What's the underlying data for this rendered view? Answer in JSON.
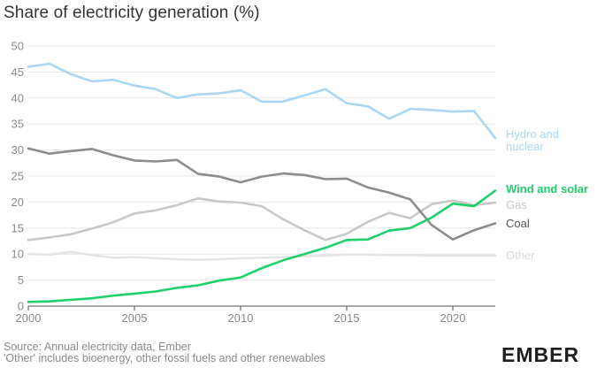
{
  "chart_data": {
    "type": "line",
    "title": "Share of electricity generation (%)",
    "xlabel": "",
    "ylabel": "",
    "xlim": [
      2000,
      2022
    ],
    "ylim": [
      0,
      50
    ],
    "x_ticks": [
      2000,
      2005,
      2010,
      2015,
      2020
    ],
    "y_ticks": [
      0,
      5,
      10,
      15,
      20,
      25,
      30,
      35,
      40,
      45,
      50
    ],
    "grid": true,
    "legend": "direct labels at line ends (right)",
    "x": [
      2000,
      2001,
      2002,
      2003,
      2004,
      2005,
      2006,
      2007,
      2008,
      2009,
      2010,
      2011,
      2012,
      2013,
      2014,
      2015,
      2016,
      2017,
      2018,
      2019,
      2020,
      2021,
      2022
    ],
    "series": [
      {
        "name": "Hydro and nuclear",
        "label_lines": [
          "Hydro and",
          "nuclear"
        ],
        "color": "#a9d6f2",
        "values": [
          46.0,
          46.6,
          44.6,
          43.2,
          43.5,
          42.4,
          41.7,
          40.0,
          40.7,
          40.9,
          41.5,
          39.3,
          39.3,
          40.5,
          41.7,
          39.0,
          38.4,
          36.0,
          37.9,
          37.7,
          37.4,
          37.5,
          32.3
        ]
      },
      {
        "name": "Wind and solar",
        "label_lines": [
          "Wind and solar"
        ],
        "color": "#1fcf6c",
        "bold": true,
        "values": [
          0.8,
          0.9,
          1.2,
          1.5,
          2.0,
          2.4,
          2.8,
          3.5,
          4.0,
          4.9,
          5.5,
          7.3,
          8.8,
          10.0,
          11.2,
          12.7,
          12.8,
          14.5,
          15.0,
          17.0,
          19.7,
          19.2,
          22.2
        ]
      },
      {
        "name": "Gas",
        "label_lines": [
          "Gas"
        ],
        "color": "#c8c8c8",
        "values": [
          12.7,
          13.2,
          13.8,
          14.9,
          16.1,
          17.8,
          18.4,
          19.4,
          20.7,
          20.1,
          19.9,
          19.2,
          16.7,
          14.6,
          12.7,
          13.9,
          16.2,
          17.9,
          16.9,
          19.6,
          20.3,
          19.4,
          19.9
        ]
      },
      {
        "name": "Coal",
        "label_lines": [
          "Coal"
        ],
        "color": "#8c8c8c",
        "values": [
          30.3,
          29.3,
          29.8,
          30.2,
          29.0,
          28.0,
          27.8,
          28.1,
          25.4,
          24.9,
          23.8,
          24.9,
          25.5,
          25.2,
          24.4,
          24.5,
          22.8,
          21.8,
          20.5,
          15.6,
          12.8,
          14.6,
          15.9
        ]
      },
      {
        "name": "Other",
        "label_lines": [
          "Other"
        ],
        "color": "#e4e4e4",
        "values": [
          10.0,
          9.9,
          10.4,
          9.8,
          9.3,
          9.4,
          9.2,
          9.0,
          8.9,
          9.0,
          9.2,
          9.3,
          9.4,
          9.6,
          9.7,
          9.9,
          9.9,
          9.8,
          9.8,
          9.7,
          9.7,
          9.7,
          9.7
        ]
      }
    ]
  },
  "footer": {
    "source": "Source: Annual electricity data, Ember",
    "note": "'Other' includes bioenergy, other fossil fuels and other renewables",
    "brand": "EMBER"
  }
}
